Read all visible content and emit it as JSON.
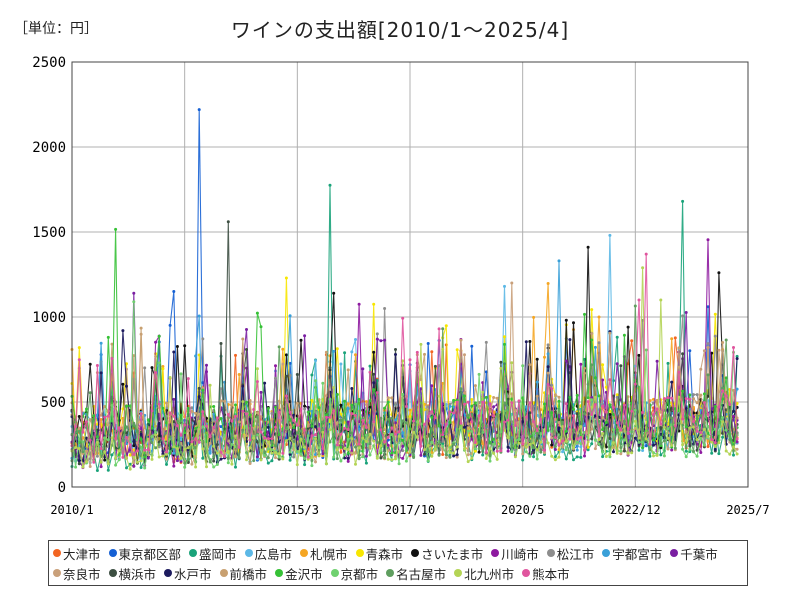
{
  "unit_label": "［単位：円］",
  "chart_data": {
    "type": "line",
    "title": "ワインの支出額[2010/1～2025/4]",
    "ylim": [
      0,
      2500
    ],
    "yticks": [
      0,
      500,
      1000,
      1500,
      2000,
      2500
    ],
    "xticks": [
      "2010/1",
      "2012/8",
      "2015/3",
      "2017/10",
      "2020/5",
      "2022/12",
      "2025/7"
    ],
    "grid": true,
    "legend_position": "bottom",
    "x_start": "2010/1",
    "x_end": "2025/4",
    "series": [
      {
        "name": "大津市",
        "color": "#f26522",
        "peaks": [
          [
            2025.3,
            760
          ]
        ]
      },
      {
        "name": "東京都区部",
        "color": "#1560d4",
        "peaks": [
          [
            2012.95,
            2220
          ],
          [
            2012.3,
            1150
          ],
          [
            2024.6,
            1060
          ]
        ]
      },
      {
        "name": "盛岡市",
        "color": "#1aa37a",
        "peaks": [
          [
            2015.95,
            1775
          ],
          [
            2024.0,
            1680
          ]
        ]
      },
      {
        "name": "広島市",
        "color": "#5cb8e6",
        "peaks": [
          [
            2022.3,
            1480
          ],
          [
            2019.9,
            1180
          ]
        ]
      },
      {
        "name": "札幌市",
        "color": "#f5a623",
        "peaks": [
          [
            2022.1,
            1000
          ]
        ]
      },
      {
        "name": "青森市",
        "color": "#f7e600",
        "peaks": [
          [
            2016.9,
            1075
          ]
        ]
      },
      {
        "name": "さいたま市",
        "color": "#111111",
        "peaks": [
          [
            2024.8,
            1260
          ],
          [
            2016.0,
            1140
          ],
          [
            2021.8,
            1410
          ]
        ]
      },
      {
        "name": "川崎市",
        "color": "#8e1aa0",
        "peaks": [
          [
            2024.55,
            1455
          ],
          [
            2016.6,
            1075
          ]
        ]
      },
      {
        "name": "松江市",
        "color": "#8d8d8d",
        "peaks": [
          [
            2017.2,
            1050
          ]
        ]
      },
      {
        "name": "宇都宮市",
        "color": "#3aa0d8",
        "peaks": [
          [
            2021.2,
            1330
          ]
        ]
      },
      {
        "name": "千葉市",
        "color": "#7a1fa2",
        "peaks": [
          [
            2011.4,
            1140
          ],
          [
            2017.0,
            870
          ]
        ]
      },
      {
        "name": "奈良市",
        "color": "#c9a07a",
        "peaks": [
          [
            2020.1,
            1200
          ]
        ]
      },
      {
        "name": "横浜市",
        "color": "#3d4f42",
        "peaks": [
          [
            2013.6,
            1560
          ]
        ]
      },
      {
        "name": "水戸市",
        "color": "#1c1a5e",
        "peaks": [
          [
            2011.2,
            920
          ]
        ]
      },
      {
        "name": "前橋市",
        "color": "#c8a070",
        "peaks": [
          [
            2018.1,
            780
          ]
        ]
      },
      {
        "name": "金沢市",
        "color": "#36c136",
        "peaks": [
          [
            2011.0,
            1515
          ]
        ]
      },
      {
        "name": "京都市",
        "color": "#6fd16f",
        "peaks": [
          [
            2011.4,
            1090
          ]
        ]
      },
      {
        "name": "名古屋市",
        "color": "#5f9e5f",
        "peaks": [
          [
            2022.9,
            1065
          ]
        ]
      },
      {
        "name": "北九州市",
        "color": "#b4d455",
        "peaks": [
          [
            2023.1,
            1290
          ],
          [
            2023.5,
            1100
          ]
        ]
      },
      {
        "name": "熊本市",
        "color": "#e0559e",
        "peaks": [
          [
            2023.2,
            1370
          ],
          [
            2023.0,
            1100
          ]
        ]
      }
    ]
  }
}
